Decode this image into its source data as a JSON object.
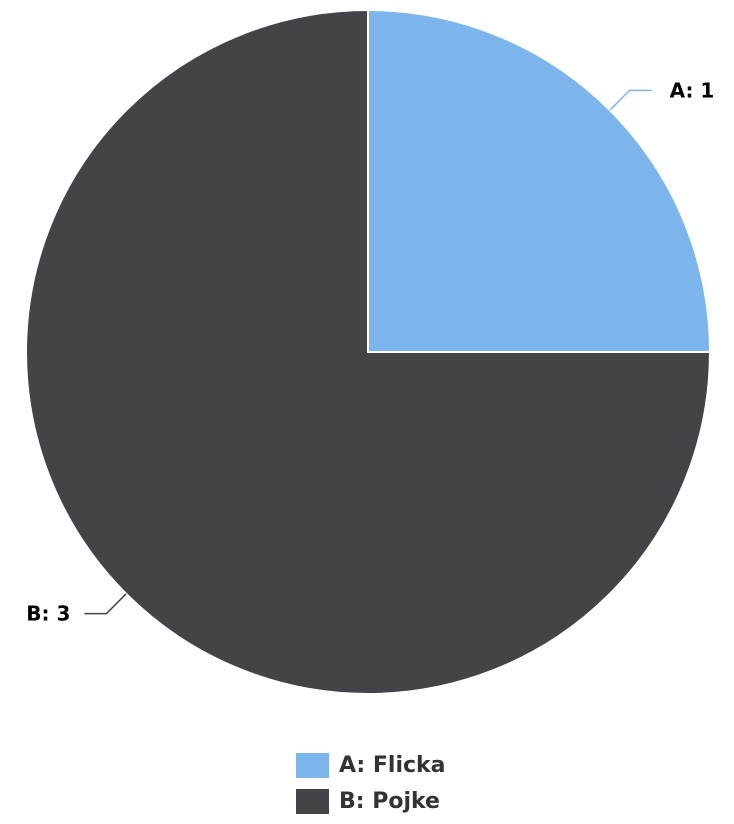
{
  "chart_data": {
    "type": "pie",
    "slices": [
      {
        "key": "A",
        "label": "Flicka",
        "value": 1,
        "color": "#7cb5ec",
        "data_label": "A: 1",
        "legend_label": "A: Flicka"
      },
      {
        "key": "B",
        "label": "Pojke",
        "value": 3,
        "color": "#434348",
        "data_label": "B: 3",
        "legend_label": "B: Pojke"
      }
    ],
    "legend_position": "bottom-center",
    "start_angle": "12 o'clock, clockwise"
  }
}
